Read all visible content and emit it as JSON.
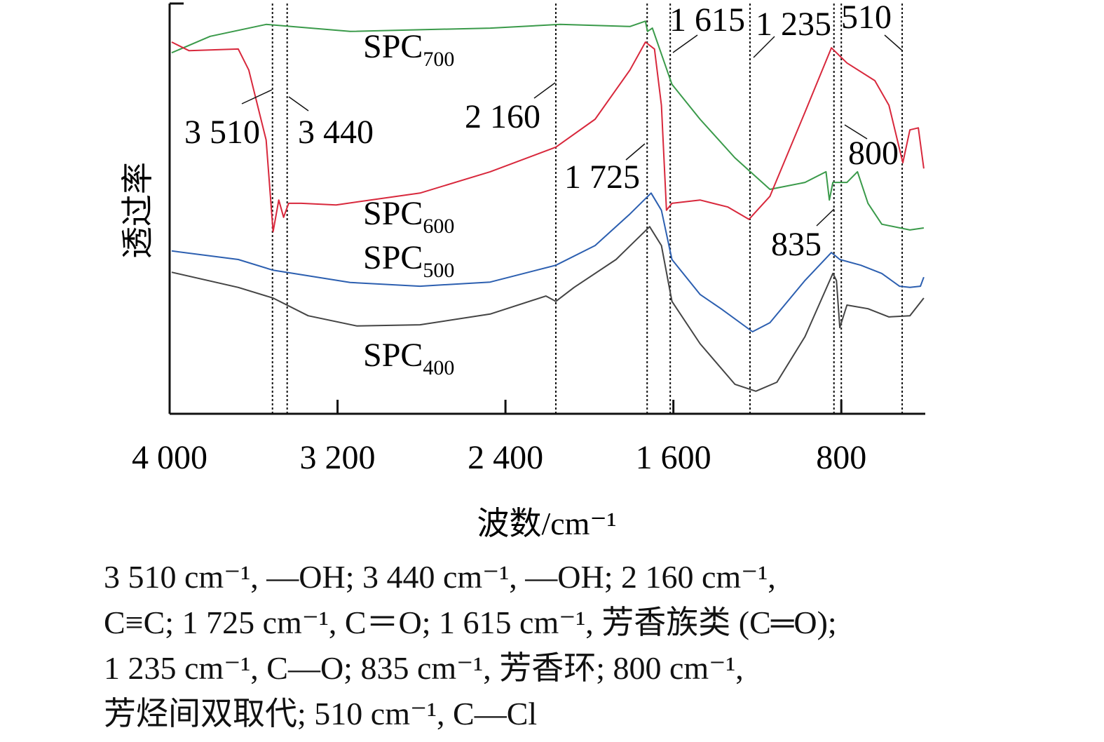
{
  "chart_data": {
    "type": "line",
    "title": "",
    "xlabel": "波数/cm⁻¹",
    "ylabel": "透过率",
    "xlim": [
      4000,
      400
    ],
    "x_reversed": true,
    "ylim": [
      0,
      100
    ],
    "y_ticks_shown": false,
    "grid": false,
    "x_ticks": [
      {
        "value": 4000,
        "label": "4 000"
      },
      {
        "value": 3200,
        "label": "3 200"
      },
      {
        "value": 2400,
        "label": "2 400"
      },
      {
        "value": 1600,
        "label": "1 600"
      },
      {
        "value": 800,
        "label": "800"
      }
    ],
    "series": [
      {
        "name": "SPC700",
        "base": "SPC",
        "sub": "700",
        "color": "#3a9a4a",
        "x": [
          3990,
          3807,
          3540,
          3140,
          2807,
          2473,
          2140,
          1807,
          1733,
          1723,
          1700,
          1607,
          1473,
          1307,
          1140,
          973,
          873,
          857,
          840,
          773,
          723,
          673,
          607,
          473,
          407
        ],
        "y": [
          88.0,
          92.0,
          94.9,
          93.2,
          93.6,
          94.0,
          94.9,
          94.4,
          95.7,
          93.2,
          94.0,
          80.3,
          71.8,
          62.4,
          54.7,
          56.4,
          59.0,
          52.1,
          56.4,
          56.4,
          59.0,
          51.3,
          46.2,
          44.8,
          45.3
        ]
      },
      {
        "name": "SPC600",
        "base": "SPC",
        "sub": "600",
        "color": "#d8283c",
        "x": [
          3990,
          3907,
          3673,
          3623,
          3540,
          3507,
          3480,
          3457,
          3433,
          3373,
          3207,
          2807,
          2473,
          2160,
          1973,
          1807,
          1733,
          1690,
          1657,
          1633,
          1607,
          1473,
          1340,
          1240,
          1140,
          973,
          847,
          773,
          640,
          573,
          507,
          473,
          433,
          407
        ],
        "y": [
          90.6,
          88.5,
          88.9,
          83.8,
          66.7,
          44.4,
          52.1,
          47.9,
          51.3,
          51.3,
          50.9,
          53.8,
          59.0,
          65.0,
          71.8,
          83.8,
          90.6,
          88.9,
          75.2,
          49.6,
          51.3,
          52.1,
          50.4,
          47.4,
          53.0,
          73.5,
          89.2,
          85.5,
          81.2,
          75.2,
          61.2,
          69.2,
          69.7,
          59.8
        ]
      },
      {
        "name": "SPC500",
        "base": "SPC",
        "sub": "500",
        "color": "#2c5fb0",
        "x": [
          3990,
          3673,
          3507,
          3140,
          2807,
          2473,
          2160,
          1973,
          1807,
          1706,
          1657,
          1607,
          1473,
          1373,
          1223,
          1140,
          973,
          847,
          807,
          707,
          607,
          523,
          473,
          423,
          407
        ],
        "y": [
          39.7,
          37.6,
          35.0,
          32.0,
          31.1,
          32.1,
          36.2,
          41.0,
          48.7,
          53.8,
          49.6,
          37.6,
          29.1,
          25.6,
          20.0,
          22.2,
          32.5,
          39.3,
          37.6,
          36.2,
          34.2,
          31.1,
          30.8,
          31.1,
          33.3
        ]
      },
      {
        "name": "SPC400",
        "base": "SPC",
        "sub": "400",
        "color": "#444444",
        "x": [
          3990,
          3673,
          3507,
          3340,
          3107,
          2807,
          2473,
          2207,
          2160,
          2073,
          1873,
          1713,
          1657,
          1607,
          1473,
          1307,
          1207,
          1107,
          973,
          840,
          823,
          807,
          773,
          673,
          573,
          473,
          407
        ],
        "y": [
          34.5,
          30.8,
          28.2,
          23.9,
          21.4,
          21.7,
          24.3,
          28.7,
          27.4,
          30.8,
          37.6,
          45.6,
          41.0,
          27.4,
          17.1,
          7.2,
          5.5,
          7.7,
          18.8,
          34.2,
          32.5,
          21.0,
          26.5,
          25.6,
          23.6,
          23.9,
          28.2
        ]
      }
    ],
    "annotations": [
      {
        "label": "3 510",
        "wavenumber": 3510
      },
      {
        "label": "3 440",
        "wavenumber": 3440
      },
      {
        "label": "2 160",
        "wavenumber": 2160
      },
      {
        "label": "1 725",
        "wavenumber": 1725
      },
      {
        "label": "1 615",
        "wavenumber": 1615
      },
      {
        "label": "1 235",
        "wavenumber": 1235
      },
      {
        "label": "835",
        "wavenumber": 835
      },
      {
        "label": "800",
        "wavenumber": 800
      },
      {
        "label": "510",
        "wavenumber": 510
      }
    ]
  },
  "caption": {
    "lines": [
      "3 510 cm⁻¹, —OH; 3 440 cm⁻¹, —OH; 2 160 cm⁻¹,",
      "C≡C; 1 725 cm⁻¹, C＝O; 1 615 cm⁻¹, 芳香族类 (C═O);",
      "1 235 cm⁻¹, C—O; 835 cm⁻¹, 芳香环; 800 cm⁻¹,",
      "芳烃间双取代; 510 cm⁻¹, C—Cl"
    ]
  }
}
